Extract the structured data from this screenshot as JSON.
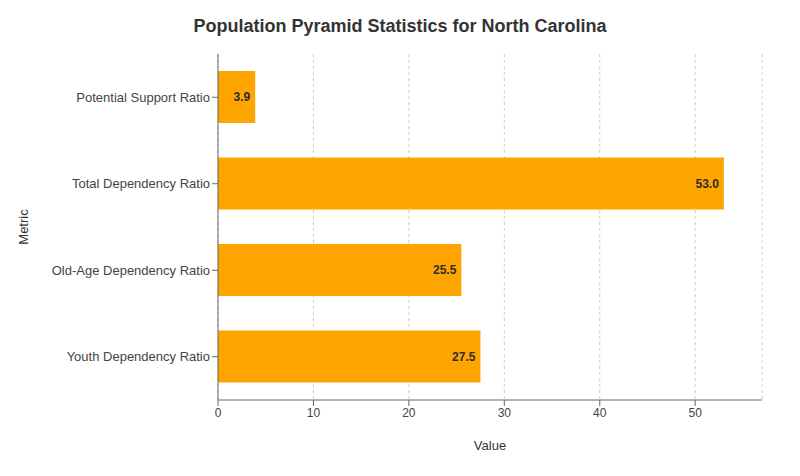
{
  "chart_data": {
    "type": "bar",
    "orientation": "horizontal",
    "title": "Population Pyramid Statistics for North Carolina",
    "categories": [
      "Potential Support Ratio",
      "Total Dependency Ratio",
      "Old-Age Dependency Ratio",
      "Youth Dependency Ratio"
    ],
    "values": [
      3.9,
      53.0,
      25.5,
      27.5
    ],
    "value_labels": [
      "3.9",
      "53.0",
      "25.5",
      "27.5"
    ],
    "data_labels": true,
    "color": "#FFA500",
    "xlabel": "Value",
    "ylabel": "Metric",
    "xlim": [
      0,
      57
    ],
    "xticks": [
      0,
      10,
      20,
      30,
      40,
      50
    ],
    "grid": true
  }
}
